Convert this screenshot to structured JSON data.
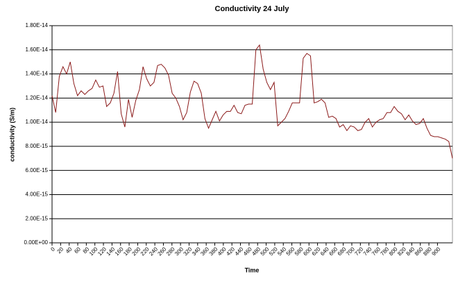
{
  "chart_data": {
    "type": "line",
    "title": "Conductivity 24 July",
    "x_label": "Time",
    "y_label": "conductivity (S/m)",
    "x": [
      0,
      8.5,
      17,
      25.5,
      34,
      42.5,
      51,
      59.5,
      68,
      76.5,
      85,
      93.5,
      102,
      110.5,
      119,
      127.5,
      136,
      144.5,
      153,
      161.5,
      170,
      178.5,
      187,
      195.5,
      204,
      212.5,
      221,
      229.5,
      238,
      246.5,
      255,
      263.5,
      272,
      280.5,
      289,
      297.5,
      306,
      314.5,
      323,
      331.5,
      340,
      348.5,
      357,
      365.5,
      374,
      382.5,
      391,
      399.5,
      408,
      416.5,
      425,
      433.5,
      442,
      450.5,
      459,
      467.5,
      476,
      484.5,
      493,
      501.5,
      510,
      518.5,
      527,
      535.5,
      544,
      552.5,
      561,
      569.5,
      578,
      586.5,
      595,
      603.5,
      612,
      620.5,
      629,
      637.5,
      646,
      654.5,
      663,
      671.5,
      680,
      688.5,
      697,
      705.5,
      714,
      722.5,
      731,
      739.5,
      748,
      756.5,
      765,
      773.5,
      782,
      790.5,
      799,
      807.5,
      816,
      824.5,
      833,
      841.5,
      850,
      858.5,
      867,
      875.5,
      884,
      892.5,
      901,
      909.5,
      918,
      926.5,
      935
    ],
    "values": [
      1.22e-14,
      1.08e-14,
      1.38e-14,
      1.46e-14,
      1.4e-14,
      1.5e-14,
      1.32e-14,
      1.22e-14,
      1.26e-14,
      1.23e-14,
      1.26e-14,
      1.28e-14,
      1.35e-14,
      1.29e-14,
      1.3e-14,
      1.13e-14,
      1.16e-14,
      1.24e-14,
      1.42e-14,
      1.07e-14,
      9.6e-15,
      1.19e-14,
      1.04e-14,
      1.18e-14,
      1.27e-14,
      1.46e-14,
      1.36e-14,
      1.3e-14,
      1.33e-14,
      1.47e-14,
      1.48e-14,
      1.45e-14,
      1.39e-14,
      1.24e-14,
      1.2e-14,
      1.13e-14,
      1.02e-14,
      1.08e-14,
      1.25e-14,
      1.34e-14,
      1.32e-14,
      1.24e-14,
      1.03e-14,
      9.5e-15,
      1.02e-14,
      1.09e-14,
      1.01e-14,
      1.06e-14,
      1.09e-14,
      1.09e-14,
      1.14e-14,
      1.08e-14,
      1.07e-14,
      1.14e-14,
      1.15e-14,
      1.15e-14,
      1.6e-14,
      1.64e-14,
      1.44e-14,
      1.33e-14,
      1.27e-14,
      1.33e-14,
      9.7e-15,
      1e-14,
      1.03e-14,
      1.09e-14,
      1.16e-14,
      1.16e-14,
      1.16e-14,
      1.53e-14,
      1.57e-14,
      1.55e-14,
      1.16e-14,
      1.17e-14,
      1.19e-14,
      1.16e-14,
      1.04e-14,
      1.05e-14,
      1.03e-14,
      9.6e-15,
      9.8e-15,
      9.3e-15,
      9.7e-15,
      9.6e-15,
      9.3e-15,
      9.4e-15,
      1e-14,
      1.03e-14,
      9.6e-15,
      1e-14,
      1.02e-14,
      1.03e-14,
      1.08e-14,
      1.08e-14,
      1.13e-14,
      1.09e-14,
      1.07e-14,
      1.02e-14,
      1.06e-14,
      1.01e-14,
      9.8e-15,
      9.9e-15,
      1.03e-14,
      9.5e-15,
      8.9e-15,
      8.8e-15,
      8.8e-15,
      8.7e-15,
      8.6e-15,
      8.4e-15,
      7e-15
    ],
    "color": "#8b1a1a",
    "xlim": [
      0,
      935
    ],
    "xticks": [
      0,
      20,
      40,
      60,
      80,
      100,
      120,
      140,
      160,
      180,
      200,
      220,
      240,
      260,
      280,
      300,
      320,
      340,
      360,
      380,
      400,
      420,
      440,
      460,
      480,
      500,
      520,
      540,
      560,
      580,
      600,
      620,
      640,
      660,
      680,
      700,
      720,
      740,
      760,
      780,
      800,
      820,
      840,
      860,
      880,
      900
    ],
    "ylim": [
      0,
      1.8e-14
    ],
    "yticks": [
      {
        "value": 0,
        "label": "0.00E+00"
      },
      {
        "value": 2e-15,
        "label": "2.00E-15"
      },
      {
        "value": 4e-15,
        "label": "4.00E-15"
      },
      {
        "value": 6e-15,
        "label": "6.00E-15"
      },
      {
        "value": 8e-15,
        "label": "8.00E-15"
      },
      {
        "value": 1e-14,
        "label": "1.00E-14"
      },
      {
        "value": 1.2e-14,
        "label": "1.20E-14"
      },
      {
        "value": 1.4e-14,
        "label": "1.40E-14"
      },
      {
        "value": 1.6e-14,
        "label": "1.60E-14"
      },
      {
        "value": 1.8e-14,
        "label": "1.80E-14"
      }
    ],
    "grid": true
  }
}
